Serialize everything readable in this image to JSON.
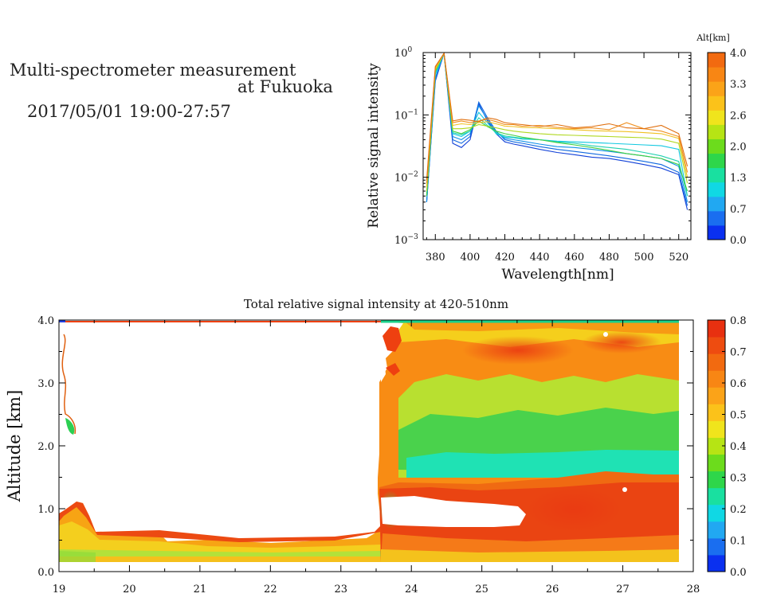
{
  "header": {
    "title_line1": "Multi-spectrometer measurement",
    "title_line2": "at Fukuoka",
    "date_range": "2017/05/01 19:00-27:57"
  },
  "chart_data": [
    {
      "type": "line",
      "xlabel": "Wavelength[nm]",
      "ylabel": "Relative signal intensity",
      "xlim": [
        373,
        527
      ],
      "ylim": [
        0.001,
        1
      ],
      "yscale": "log",
      "x_ticks": [
        "380",
        "400",
        "420",
        "440",
        "460",
        "480",
        "500",
        "520"
      ],
      "y_ticks": [
        "10",
        "10",
        "10",
        "10"
      ],
      "y_tick_exponents": [
        "0",
        "−1",
        "−2",
        "−3"
      ],
      "colorbar_title": "Alt[km]",
      "colorbar_ticks": [
        "4.0",
        "3.3",
        "2.6",
        "2.0",
        "1.3",
        "0.7",
        "0.0"
      ],
      "colorbar_colors": [
        "#0a30f0",
        "#1a6ef0",
        "#21a8f2",
        "#10d8e4",
        "#19e0a0",
        "#2ed64a",
        "#6cdc1c",
        "#b6e414",
        "#f0e41c",
        "#fbc21a",
        "#fba318",
        "#f88614",
        "#f26a10"
      ],
      "x": [
        375,
        380,
        385,
        390,
        395,
        400,
        405,
        410,
        415,
        420,
        425,
        430,
        440,
        450,
        460,
        470,
        480,
        490,
        500,
        510,
        520,
        525
      ],
      "series": [
        {
          "color": "#1040d8",
          "values": [
            0.004,
            0.35,
            0.97,
            0.035,
            0.03,
            0.04,
            0.15,
            0.08,
            0.05,
            0.037,
            0.034,
            0.032,
            0.028,
            0.025,
            0.023,
            0.021,
            0.02,
            0.018,
            0.016,
            0.014,
            0.011,
            0.003
          ]
        },
        {
          "color": "#1068e0",
          "values": [
            0.004,
            0.37,
            0.97,
            0.04,
            0.035,
            0.045,
            0.16,
            0.09,
            0.055,
            0.04,
            0.037,
            0.035,
            0.031,
            0.028,
            0.026,
            0.024,
            0.022,
            0.02,
            0.018,
            0.016,
            0.012,
            0.0035
          ]
        },
        {
          "color": "#1090e8",
          "values": [
            0.004,
            0.4,
            0.97,
            0.045,
            0.04,
            0.05,
            0.14,
            0.085,
            0.052,
            0.042,
            0.04,
            0.038,
            0.034,
            0.031,
            0.03,
            0.028,
            0.026,
            0.024,
            0.022,
            0.02,
            0.015,
            0.004
          ]
        },
        {
          "color": "#10c8e0",
          "values": [
            0.005,
            0.45,
            0.97,
            0.05,
            0.045,
            0.055,
            0.11,
            0.075,
            0.05,
            0.044,
            0.043,
            0.041,
            0.04,
            0.038,
            0.037,
            0.036,
            0.035,
            0.034,
            0.033,
            0.032,
            0.028,
            0.005
          ]
        },
        {
          "color": "#20d0b0",
          "values": [
            0.005,
            0.48,
            0.97,
            0.052,
            0.048,
            0.055,
            0.09,
            0.068,
            0.052,
            0.046,
            0.044,
            0.042,
            0.04,
            0.037,
            0.035,
            0.032,
            0.03,
            0.028,
            0.025,
            0.022,
            0.018,
            0.005
          ]
        },
        {
          "color": "#40d040",
          "values": [
            0.005,
            0.5,
            0.97,
            0.055,
            0.05,
            0.058,
            0.08,
            0.065,
            0.055,
            0.05,
            0.047,
            0.044,
            0.04,
            0.036,
            0.033,
            0.03,
            0.027,
            0.024,
            0.022,
            0.02,
            0.016,
            0.006
          ]
        },
        {
          "color": "#b0d820",
          "values": [
            0.006,
            0.52,
            0.97,
            0.06,
            0.06,
            0.062,
            0.07,
            0.066,
            0.062,
            0.058,
            0.055,
            0.053,
            0.05,
            0.048,
            0.047,
            0.046,
            0.045,
            0.044,
            0.043,
            0.041,
            0.035,
            0.008
          ]
        },
        {
          "color": "#f0c020",
          "values": [
            0.007,
            0.55,
            0.97,
            0.068,
            0.072,
            0.07,
            0.075,
            0.078,
            0.072,
            0.066,
            0.065,
            0.063,
            0.062,
            0.06,
            0.058,
            0.056,
            0.055,
            0.054,
            0.052,
            0.05,
            0.042,
            0.01
          ]
        },
        {
          "color": "#f09020",
          "values": [
            0.008,
            0.58,
            0.97,
            0.075,
            0.08,
            0.075,
            0.08,
            0.085,
            0.078,
            0.07,
            0.07,
            0.066,
            0.068,
            0.063,
            0.06,
            0.062,
            0.058,
            0.075,
            0.06,
            0.055,
            0.045,
            0.012
          ]
        },
        {
          "color": "#e07010",
          "values": [
            0.009,
            0.6,
            0.97,
            0.08,
            0.085,
            0.082,
            0.078,
            0.09,
            0.085,
            0.075,
            0.072,
            0.07,
            0.065,
            0.07,
            0.062,
            0.065,
            0.072,
            0.062,
            0.06,
            0.068,
            0.05,
            0.015
          ]
        }
      ]
    },
    {
      "type": "heatmap",
      "title": "Total relative signal intensity at 420-510nm",
      "ylabel": "Altitude [km]",
      "xlim": [
        19,
        28
      ],
      "ylim": [
        0,
        4
      ],
      "x_ticks": [
        "19",
        "20",
        "21",
        "22",
        "23",
        "24",
        "25",
        "26",
        "27",
        "28"
      ],
      "y_ticks": [
        "0.0",
        "1.0",
        "2.0",
        "3.0",
        "4.0"
      ],
      "colorbar_ticks": [
        "0.0",
        "0.1",
        "0.2",
        "0.3",
        "0.4",
        "0.5",
        "0.6",
        "0.7",
        "0.8"
      ],
      "colorbar_range": [
        0,
        0.8
      ],
      "colorbar_colors": [
        "#0a30f0",
        "#1a6ef0",
        "#21a8f2",
        "#10d8e4",
        "#19e0a0",
        "#2ed64a",
        "#6cdc1c",
        "#b6e414",
        "#f0e41c",
        "#fbc21a",
        "#fba318",
        "#f88614",
        "#f26a10",
        "#ee4c10",
        "#e83010"
      ],
      "data_time_range": [
        19,
        27.8
      ],
      "data_altitude_range": [
        0.15,
        4.0
      ]
    }
  ]
}
